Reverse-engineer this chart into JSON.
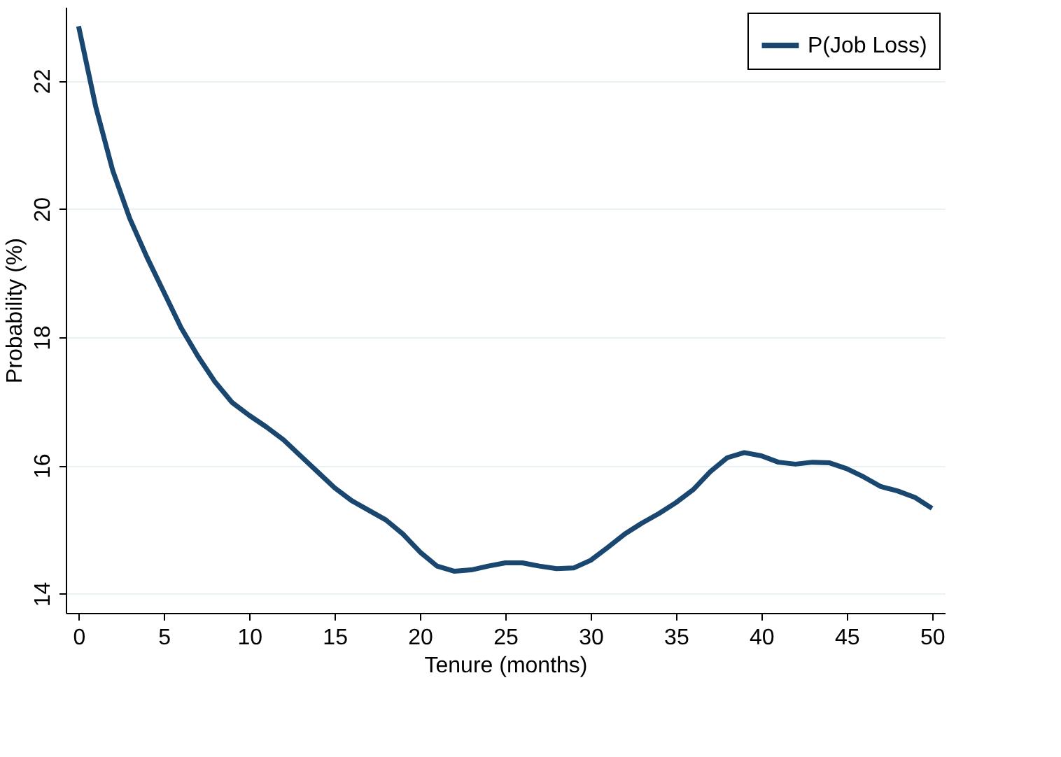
{
  "chart_data": {
    "type": "line",
    "xlabel": "Tenure (months)",
    "ylabel": "Probability (%)",
    "x": [
      0,
      1,
      2,
      3,
      4,
      5,
      6,
      7,
      8,
      9,
      10,
      11,
      12,
      13,
      14,
      15,
      16,
      17,
      18,
      19,
      20,
      21,
      22,
      23,
      24,
      25,
      26,
      27,
      28,
      29,
      30,
      31,
      32,
      33,
      34,
      35,
      36,
      37,
      38,
      39,
      40,
      41,
      42,
      43,
      44,
      45,
      46,
      47,
      48,
      49,
      50
    ],
    "series": [
      {
        "name": "P(Job Loss)",
        "color": "#1a476f",
        "values": [
          22.85,
          21.6,
          20.6,
          19.85,
          19.25,
          18.7,
          18.15,
          17.7,
          17.3,
          16.98,
          16.78,
          16.6,
          16.4,
          16.15,
          15.9,
          15.65,
          15.45,
          15.3,
          15.15,
          14.93,
          14.65,
          14.43,
          14.35,
          14.37,
          14.43,
          14.48,
          14.48,
          14.43,
          14.39,
          14.4,
          14.52,
          14.72,
          14.93,
          15.1,
          15.25,
          15.42,
          15.62,
          15.9,
          16.12,
          16.2,
          16.15,
          16.05,
          16.02,
          16.05,
          16.04,
          15.95,
          15.82,
          15.67,
          15.6,
          15.5,
          15.33
        ]
      }
    ],
    "xlim": [
      -0.75,
      50.75
    ],
    "xticks": [
      0,
      5,
      10,
      15,
      20,
      25,
      30,
      35,
      40,
      45,
      50
    ],
    "ylim": [
      13.7,
      23.15
    ],
    "yticks": [
      14,
      16,
      18,
      20,
      22
    ],
    "grid": "y",
    "legend": "top right",
    "line_style": "solid",
    "marker": "none"
  }
}
